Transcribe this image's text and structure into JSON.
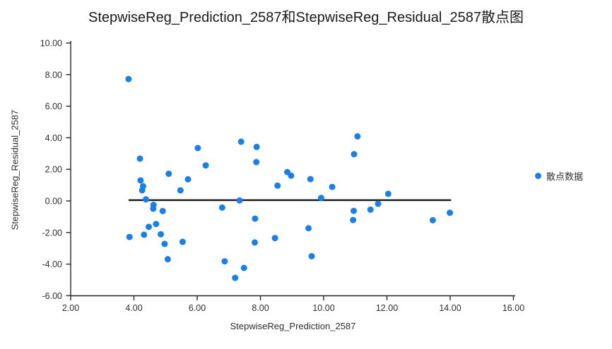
{
  "page": {
    "background": "#ffffff"
  },
  "style": {
    "point_color": "#1b7fe4",
    "axis_color": "#262626",
    "tick_text_color": "#2e2e2e",
    "title_color": "#1a1a1a",
    "reference_line_color": "#1f1f1f"
  },
  "chart_data": {
    "type": "scatter",
    "title": "StepwiseReg_Prediction_2587和StepwiseReg_Residual_2587散点图",
    "xlabel": "StepwiseReg_Prediction_2587",
    "ylabel": "StepwiseReg_Residual_2587",
    "legend_position": "right",
    "grid": false,
    "xlim": [
      2,
      16
    ],
    "ylim": [
      -6,
      10
    ],
    "x_ticks": [
      2,
      4,
      6,
      8,
      10,
      12,
      14,
      16
    ],
    "x_tick_labels": [
      "2.00",
      "4.00",
      "6.00",
      "8.00",
      "10.00",
      "12.00",
      "14.00",
      "16.00"
    ],
    "y_ticks": [
      10,
      8,
      6,
      4,
      2,
      0,
      -2,
      -4,
      -6
    ],
    "y_tick_labels": [
      "10.00",
      "8.00",
      "6.00",
      "4.00",
      "2.00",
      "0.00",
      "-2.00",
      "-4.00",
      "-6.00"
    ],
    "legend": [
      {
        "label": "散点数据",
        "marker_color": "#1b7fe4"
      }
    ],
    "reference_line": {
      "y": 0.05,
      "x_start": 3.83,
      "x_end": 14.03,
      "color": "#1f1f1f"
    },
    "series": [
      {
        "name": "散点数据",
        "color": "#1b7fe4",
        "points": [
          [
            3.83,
            7.72
          ],
          [
            3.86,
            -2.28
          ],
          [
            4.19,
            2.68
          ],
          [
            4.21,
            1.3
          ],
          [
            4.26,
            0.67
          ],
          [
            4.29,
            0.93
          ],
          [
            4.32,
            -2.14
          ],
          [
            4.38,
            0.1
          ],
          [
            4.47,
            -1.64
          ],
          [
            4.61,
            -0.49
          ],
          [
            4.62,
            -0.25
          ],
          [
            4.7,
            -1.46
          ],
          [
            4.85,
            -2.11
          ],
          [
            4.91,
            -0.64
          ],
          [
            4.97,
            -2.72
          ],
          [
            5.07,
            -3.69
          ],
          [
            5.1,
            1.72
          ],
          [
            5.47,
            0.67
          ],
          [
            5.54,
            -2.59
          ],
          [
            5.71,
            1.37
          ],
          [
            6.02,
            3.35
          ],
          [
            6.27,
            2.25
          ],
          [
            6.79,
            -0.42
          ],
          [
            6.87,
            -3.82
          ],
          [
            7.2,
            -4.87
          ],
          [
            7.34,
            0.03
          ],
          [
            7.39,
            3.75
          ],
          [
            7.48,
            -4.24
          ],
          [
            7.82,
            -2.63
          ],
          [
            7.83,
            -1.12
          ],
          [
            7.87,
            2.46
          ],
          [
            7.88,
            3.42
          ],
          [
            8.46,
            -2.35
          ],
          [
            8.54,
            0.97
          ],
          [
            8.85,
            1.83
          ],
          [
            8.97,
            1.6
          ],
          [
            9.52,
            -1.73
          ],
          [
            9.58,
            1.38
          ],
          [
            9.62,
            -3.5
          ],
          [
            9.92,
            0.19
          ],
          [
            10.27,
            0.89
          ],
          [
            10.93,
            -1.21
          ],
          [
            10.95,
            -0.63
          ],
          [
            10.96,
            2.96
          ],
          [
            11.07,
            4.09
          ],
          [
            11.48,
            -0.55
          ],
          [
            11.72,
            -0.18
          ],
          [
            12.04,
            0.45
          ],
          [
            13.45,
            -1.22
          ],
          [
            13.99,
            -0.75
          ]
        ]
      }
    ]
  }
}
